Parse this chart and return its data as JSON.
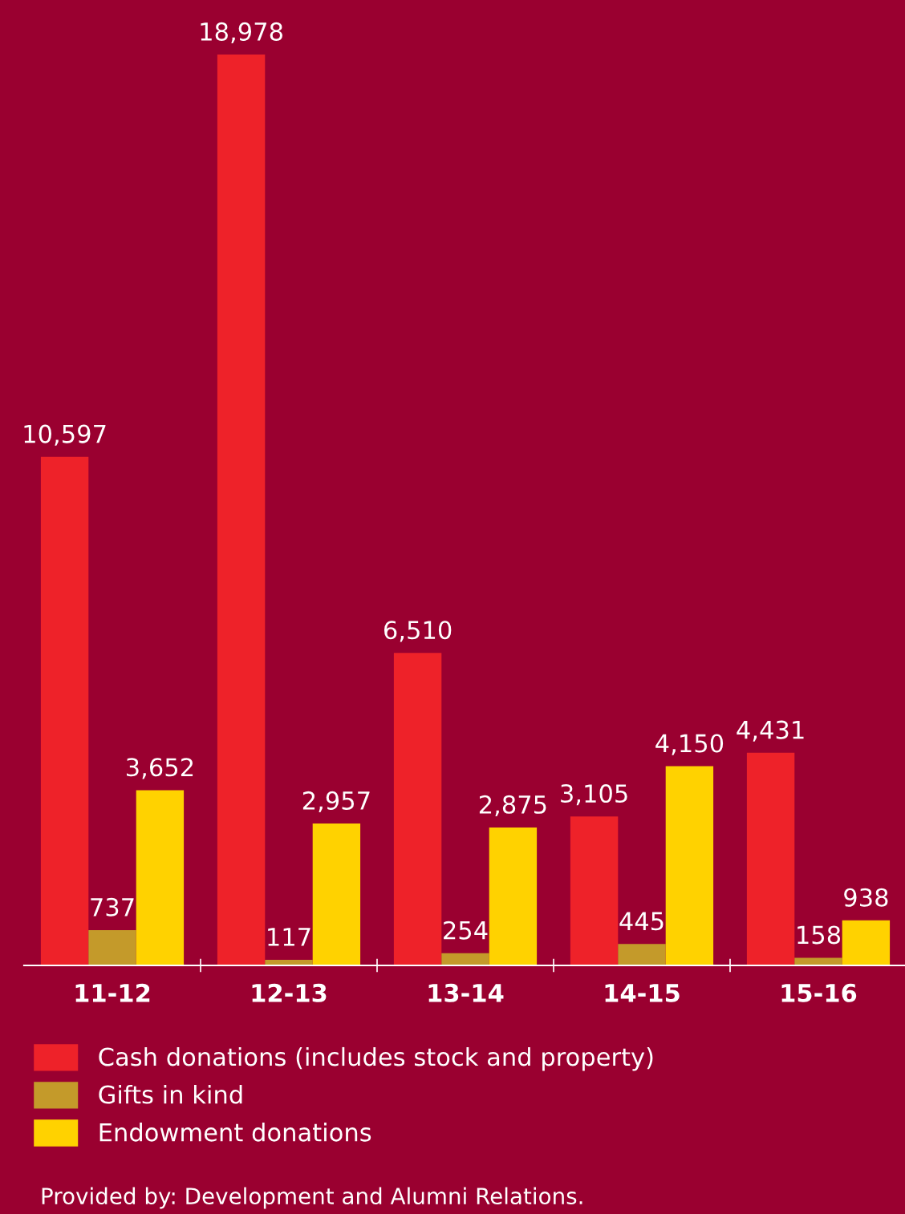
{
  "chart_data": {
    "type": "bar",
    "categories": [
      "11-12",
      "12-13",
      "13-14",
      "14-15",
      "15-16"
    ],
    "series": [
      {
        "name": "Cash donations (includes stock and property)",
        "color": "#ee2229",
        "values": [
          10597,
          18978,
          6510,
          3105,
          4431
        ],
        "value_labels": [
          "10,597",
          "18,978",
          "6,510",
          "3,105",
          "4,431"
        ]
      },
      {
        "name": "Gifts in kind",
        "color": "#c49a2a",
        "values": [
          737,
          117,
          254,
          445,
          158
        ],
        "value_labels": [
          "737",
          "117",
          "254",
          "445",
          "158"
        ]
      },
      {
        "name": "Endowment donations",
        "color": "#ffd200",
        "values": [
          3652,
          2957,
          2875,
          4150,
          938
        ],
        "value_labels": [
          "3,652",
          "2,957",
          "2,875",
          "4,150",
          "938"
        ]
      }
    ],
    "legend": "bottom",
    "grid": false,
    "annotations": [
      "Provided by: Development and Alumni Relations."
    ]
  }
}
